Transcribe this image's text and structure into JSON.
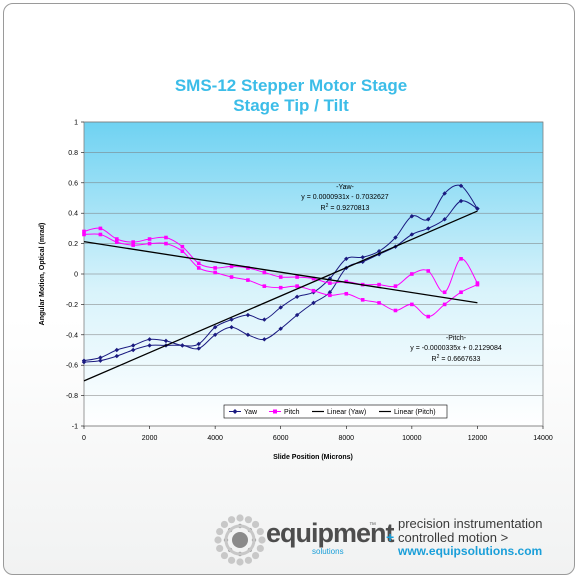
{
  "chart_data": {
    "type": "line",
    "title": "SMS-12 Stepper Motor Stage",
    "subtitle": "Stage Tip / Tilt",
    "xlabel": "Slide Position (Microns)",
    "ylabel": "Angular Motion, Optical (mrad)",
    "xlim": [
      0,
      14000
    ],
    "ylim": [
      -1,
      1
    ],
    "x_ticks": [
      "0",
      "2000",
      "4000",
      "6000",
      "8000",
      "10000",
      "12000",
      "14000"
    ],
    "y_ticks": [
      "-1",
      "-0.8",
      "-0.6",
      "-0.4",
      "-0.2",
      "0",
      "0.2",
      "0.4",
      "0.6",
      "0.8",
      "1"
    ],
    "grid": "horizontal",
    "legend_position": "bottom",
    "legend": [
      "Yaw",
      "Pitch",
      "Linear (Yaw)",
      "Linear (Pitch)"
    ],
    "colors": {
      "yaw": "#1a1a80",
      "pitch": "#ff00ff",
      "trend": "#000000",
      "title": "#3cbde8",
      "plot_top": "#6fd2f2"
    },
    "series": [
      {
        "name": "Yaw",
        "x": [
          0,
          500,
          1000,
          1500,
          2000,
          2500,
          3000,
          3500,
          4000,
          4500,
          5000,
          5500,
          6000,
          6500,
          7000,
          7500,
          8000,
          8500,
          9000,
          9500,
          10000,
          10500,
          11000,
          11500,
          12000
        ],
        "y": [
          -0.57,
          -0.55,
          -0.5,
          -0.47,
          -0.43,
          -0.44,
          -0.47,
          -0.46,
          -0.35,
          -0.3,
          -0.27,
          -0.3,
          -0.22,
          -0.15,
          -0.12,
          -0.03,
          0.1,
          0.11,
          0.15,
          0.24,
          0.38,
          0.36,
          0.53,
          0.58,
          0.43
        ]
      },
      {
        "name": "Yaw",
        "x": [
          0,
          500,
          1000,
          1500,
          2000,
          2500,
          3000,
          3500,
          4000,
          4500,
          5000,
          5500,
          6000,
          6500,
          7000,
          7500,
          8000,
          8500,
          9000,
          9500,
          10000,
          10500,
          11000,
          11500,
          12000
        ],
        "y": [
          -0.58,
          -0.57,
          -0.54,
          -0.5,
          -0.47,
          -0.47,
          -0.47,
          -0.49,
          -0.4,
          -0.35,
          -0.4,
          -0.43,
          -0.36,
          -0.27,
          -0.19,
          -0.12,
          0.04,
          0.08,
          0.13,
          0.18,
          0.26,
          0.3,
          0.36,
          0.48,
          0.43
        ]
      },
      {
        "name": "Pitch",
        "x": [
          0,
          500,
          1000,
          1500,
          2000,
          2500,
          3000,
          3500,
          4000,
          4500,
          5000,
          5500,
          6000,
          6500,
          7000,
          7500,
          8000,
          8500,
          9000,
          9500,
          10000,
          10500,
          11000,
          11500,
          12000
        ],
        "y": [
          0.28,
          0.3,
          0.23,
          0.21,
          0.23,
          0.24,
          0.18,
          0.07,
          0.04,
          0.05,
          0.04,
          0.01,
          -0.02,
          -0.02,
          -0.03,
          -0.06,
          -0.05,
          -0.07,
          -0.07,
          -0.08,
          0.0,
          0.02,
          -0.12,
          0.1,
          -0.06
        ]
      },
      {
        "name": "Pitch",
        "x": [
          0,
          500,
          1000,
          1500,
          2000,
          2500,
          3000,
          3500,
          4000,
          4500,
          5000,
          5500,
          6000,
          6500,
          7000,
          7500,
          8000,
          8500,
          9000,
          9500,
          10000,
          10500,
          11000,
          11500,
          12000
        ],
        "y": [
          0.26,
          0.26,
          0.21,
          0.19,
          0.2,
          0.2,
          0.15,
          0.04,
          0.01,
          -0.02,
          -0.04,
          -0.08,
          -0.09,
          -0.08,
          -0.11,
          -0.14,
          -0.13,
          -0.17,
          -0.19,
          -0.24,
          -0.2,
          -0.28,
          -0.2,
          -0.12,
          -0.07
        ]
      }
    ],
    "trendlines": [
      {
        "name": "Linear (Yaw)",
        "label": "-Yaw-",
        "equation": "y = 0.0000931x - 0.7032627",
        "r2_prefix": "R",
        "r2_sup": "2",
        "r2_value": " = 0.9270813",
        "slope": 9.31e-05,
        "intercept": -0.7032627,
        "x_range": [
          0,
          12000
        ]
      },
      {
        "name": "Linear (Pitch)",
        "label": "-Pitch-",
        "equation": "y = -0.0000335x + 0.2129084",
        "r2_prefix": "R",
        "r2_sup": "2",
        "r2_value": " = 0.6667633",
        "slope": -3.35e-05,
        "intercept": 0.2129084,
        "x_range": [
          0,
          12000
        ]
      }
    ]
  },
  "footer": {
    "brand": "equipment",
    "brand_tm": "™",
    "brand_sub": "solutions",
    "tagline_1": "precision instrumentation",
    "tagline_plus": "+",
    "tagline_2": "controlled motion >",
    "url": "www.equipsolutions.com"
  }
}
